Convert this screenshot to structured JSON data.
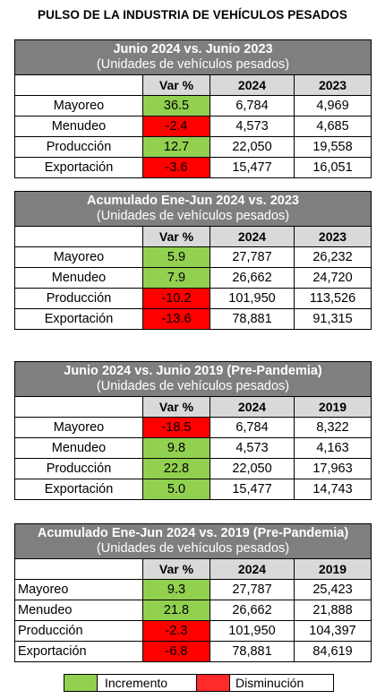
{
  "title": "PULSO DE LA INDUSTRIA DE VEHÍCULOS PESADOS",
  "colors": {
    "increase": "#92d050",
    "decrease": "#ff0000",
    "header_bg": "#7f7f7f",
    "colhead_bg": "#d9d9d9"
  },
  "tables": [
    {
      "title": "Junio 2024 vs. Junio 2023",
      "subtitle": "(Unidades de vehículos pesados)",
      "col_var": "Var %",
      "col_a": "2024",
      "col_b": "2023",
      "rows": [
        {
          "label": "Mayoreo",
          "var": "36.5",
          "trend": "increase",
          "a": "6,784",
          "b": "4,969"
        },
        {
          "label": "Menudeo",
          "var": "-2.4",
          "trend": "decrease",
          "a": "4,573",
          "b": "4,685"
        },
        {
          "label": "Producción",
          "var": "12.7",
          "trend": "increase",
          "a": "22,050",
          "b": "19,558"
        },
        {
          "label": "Exportación",
          "var": "-3.6",
          "trend": "decrease",
          "a": "15,477",
          "b": "16,051"
        }
      ]
    },
    {
      "title": "Acumulado Ene-Jun 2024 vs. 2023",
      "subtitle": "(Unidades de vehículos pesados)",
      "col_var": "Var %",
      "col_a": "2024",
      "col_b": "2023",
      "rows": [
        {
          "label": "Mayoreo",
          "var": "5.9",
          "trend": "increase",
          "a": "27,787",
          "b": "26,232"
        },
        {
          "label": "Menudeo",
          "var": "7.9",
          "trend": "increase",
          "a": "26,662",
          "b": "24,720"
        },
        {
          "label": "Producción",
          "var": "-10.2",
          "trend": "decrease",
          "a": "101,950",
          "b": "113,526"
        },
        {
          "label": "Exportación",
          "var": "-13.6",
          "trend": "decrease",
          "a": "78,881",
          "b": "91,315"
        }
      ]
    },
    {
      "title": "Junio 2024 vs. Junio 2019 (Pre-Pandemia)",
      "subtitle": "(Unidades de vehículos pesados)",
      "col_var": "Var %",
      "col_a": "2024",
      "col_b": "2019",
      "rows": [
        {
          "label": "Mayoreo",
          "var": "-18.5",
          "trend": "decrease",
          "a": "6,784",
          "b": "8,322"
        },
        {
          "label": "Menudeo",
          "var": "9.8",
          "trend": "increase",
          "a": "4,573",
          "b": "4,163"
        },
        {
          "label": "Producción",
          "var": "22.8",
          "trend": "increase",
          "a": "22,050",
          "b": "17,963"
        },
        {
          "label": "Exportación",
          "var": "5.0",
          "trend": "increase",
          "a": "15,477",
          "b": "14,743"
        }
      ]
    },
    {
      "title": "Acumulado Ene-Jun 2024 vs. 2019 (Pre-Pandemia)",
      "subtitle": "(Unidades de vehículos pesados)",
      "col_var": "Var %",
      "col_a": "2024",
      "col_b": "2019",
      "rows": [
        {
          "label": "Mayoreo",
          "var": "9.3",
          "trend": "increase",
          "a": "27,787",
          "b": "25,423"
        },
        {
          "label": "Menudeo",
          "var": "21.8",
          "trend": "increase",
          "a": "26,662",
          "b": "21,888"
        },
        {
          "label": "Producción",
          "var": "-2.3",
          "trend": "decrease",
          "a": "101,950",
          "b": "104,397"
        },
        {
          "label": "Exportación",
          "var": "-6.8",
          "trend": "decrease",
          "a": "78,881",
          "b": "84,619"
        }
      ]
    }
  ],
  "legend": {
    "increase_label": "Incremento",
    "decrease_label": "Disminución"
  }
}
